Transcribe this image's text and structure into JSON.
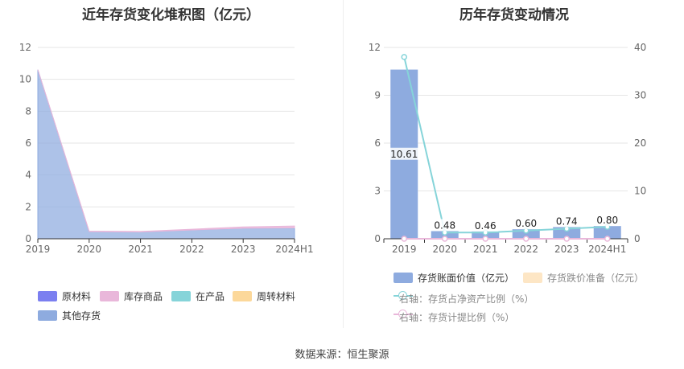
{
  "left_chart": {
    "title": "近年存货变化堆积图（亿元）",
    "legend": [
      {
        "name": "原材料",
        "color": "#7b7ff0"
      },
      {
        "name": "库存商品",
        "color": "#e9b7da"
      },
      {
        "name": "在产品",
        "color": "#86d4d9"
      },
      {
        "name": "周转材料",
        "color": "#fcd89a"
      },
      {
        "name": "其他存货",
        "color": "#8eabdf"
      }
    ]
  },
  "right_chart": {
    "title": "历年存货变动情况",
    "legend": [
      {
        "name": "存货账面价值（亿元）",
        "color": "#8eabdf",
        "kind": "bar"
      },
      {
        "name": "存货跌价准备（亿元）",
        "color": "#fde6c5",
        "kind": "bar"
      },
      {
        "name": "右轴：存货占净资产比例（%）",
        "color": "#86d4d9",
        "kind": "line"
      },
      {
        "name": "右轴：存货计提比例（%）",
        "color": "#e9b7da",
        "kind": "line"
      }
    ]
  },
  "source_text": "数据来源：恒生聚源",
  "chart_data": [
    {
      "type": "area",
      "title": "近年存货变化堆积图（亿元）",
      "categories": [
        "2019",
        "2020",
        "2021",
        "2022",
        "2023",
        "2024H1"
      ],
      "ylim": [
        0,
        12
      ],
      "yticks": [
        0,
        2,
        4,
        6,
        8,
        10,
        12
      ],
      "grid": true,
      "legend_position": "bottom",
      "stacked": true,
      "series": [
        {
          "name": "其他存货",
          "color": "#8eabdf",
          "values": [
            10.61,
            0.45,
            0.43,
            0.55,
            0.66,
            0.68
          ]
        },
        {
          "name": "周转材料",
          "color": "#fcd89a",
          "values": [
            0,
            0,
            0,
            0,
            0,
            0
          ]
        },
        {
          "name": "在产品",
          "color": "#86d4d9",
          "values": [
            0,
            0,
            0,
            0,
            0,
            0
          ]
        },
        {
          "name": "库存商品",
          "color": "#e9b7da",
          "values": [
            0,
            0.03,
            0.03,
            0.05,
            0.08,
            0.12
          ]
        },
        {
          "name": "原材料",
          "color": "#7b7ff0",
          "values": [
            0,
            0,
            0,
            0,
            0,
            0
          ]
        }
      ]
    },
    {
      "type": "bar",
      "title": "历年存货变动情况",
      "categories": [
        "2019",
        "2020",
        "2021",
        "2022",
        "2023",
        "2024H1"
      ],
      "ylim": [
        0,
        12
      ],
      "yticks": [
        0,
        3,
        6,
        9,
        12
      ],
      "y2lim": [
        0,
        40
      ],
      "y2ticks": [
        0,
        10,
        20,
        30,
        40
      ],
      "grid": true,
      "legend_position": "bottom",
      "series": [
        {
          "name": "存货账面价值（亿元）",
          "type": "bar",
          "color": "#8eabdf",
          "values": [
            10.61,
            0.48,
            0.46,
            0.6,
            0.74,
            0.8
          ],
          "labels": [
            "10.61",
            "0.48",
            "0.46",
            "0.60",
            "0.74",
            "0.80"
          ]
        },
        {
          "name": "存货跌价准备（亿元）",
          "type": "bar",
          "color": "#fde6c5",
          "values": [
            0,
            0,
            0,
            0,
            0,
            0
          ]
        },
        {
          "name": "右轴：存货占净资产比例（%）",
          "type": "line",
          "axis": "right",
          "color": "#86d4d9",
          "values": [
            38.0,
            1.3,
            1.3,
            1.7,
            2.1,
            2.5
          ]
        },
        {
          "name": "右轴：存货计提比例（%）",
          "type": "line",
          "axis": "right",
          "color": "#e9b7da",
          "values": [
            0,
            0,
            0,
            0,
            0,
            0
          ]
        }
      ]
    }
  ]
}
